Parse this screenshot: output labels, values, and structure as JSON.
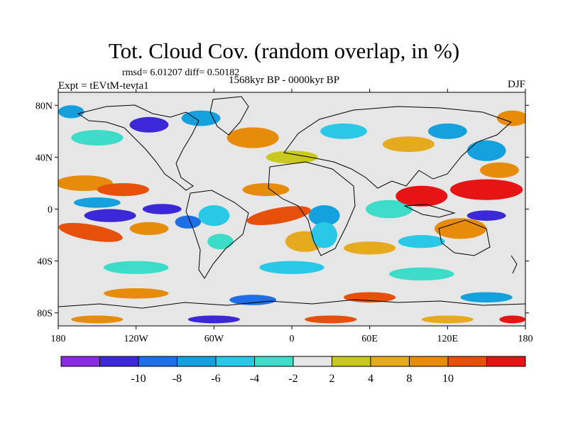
{
  "title": "Tot. Cloud Cov. (random overlap, in %)",
  "stats": "rmsd= 6.01207 diff= 0.50182",
  "experiment": "Expt = tEVtM-tevta1",
  "period": "1568kyr BP - 0000kyr BP",
  "season": "DJF",
  "map": {
    "lon_range": [
      -180,
      180
    ],
    "lat_range": [
      -90,
      90
    ],
    "x_ticks": [
      {
        "lon": -180,
        "label": "180"
      },
      {
        "lon": -120,
        "label": "120W"
      },
      {
        "lon": -60,
        "label": "60W"
      },
      {
        "lon": 0,
        "label": "0"
      },
      {
        "lon": 60,
        "label": "60E"
      },
      {
        "lon": 120,
        "label": "120E"
      },
      {
        "lon": 180,
        "label": "180"
      }
    ],
    "y_ticks": [
      {
        "lat": 80,
        "label": "80N"
      },
      {
        "lat": 40,
        "label": "40N"
      },
      {
        "lat": 0,
        "label": "0"
      },
      {
        "lat": -40,
        "label": "40S"
      },
      {
        "lat": -80,
        "label": "80S"
      }
    ]
  },
  "colorbar": {
    "colors": [
      "#8a2be2",
      "#3c28d6",
      "#1e6ee6",
      "#14a0dc",
      "#28c8e6",
      "#3cdcc8",
      "#e6e6e6",
      "#c8c81e",
      "#e6aa1e",
      "#e68c0a",
      "#e6500a",
      "#e61414"
    ],
    "labels": [
      {
        "after_box": 1,
        "text": "-10"
      },
      {
        "after_box": 2,
        "text": "-8"
      },
      {
        "after_box": 3,
        "text": "-6"
      },
      {
        "after_box": 4,
        "text": "-4"
      },
      {
        "after_box": 5,
        "text": "-2"
      },
      {
        "after_box": 6,
        "text": "2"
      },
      {
        "after_box": 7,
        "text": "4"
      },
      {
        "after_box": 8,
        "text": "8"
      },
      {
        "after_box": 9,
        "text": "10"
      }
    ]
  },
  "anomaly_regions": [
    {
      "lon": -160,
      "lat": 20,
      "rx": 22,
      "ry": 6,
      "cat": 9,
      "rot": 0
    },
    {
      "lon": -130,
      "lat": 15,
      "rx": 20,
      "ry": 5,
      "cat": 10,
      "rot": 0
    },
    {
      "lon": -155,
      "lat": -18,
      "rx": 25,
      "ry": 6,
      "cat": 10,
      "rot": 10
    },
    {
      "lon": -140,
      "lat": -5,
      "rx": 20,
      "ry": 5,
      "cat": 1,
      "rot": 0
    },
    {
      "lon": -150,
      "lat": 5,
      "rx": 18,
      "ry": 4,
      "cat": 3,
      "rot": 0
    },
    {
      "lon": -100,
      "lat": 0,
      "rx": 15,
      "ry": 4,
      "cat": 1,
      "rot": 0
    },
    {
      "lon": -110,
      "lat": -15,
      "rx": 15,
      "ry": 5,
      "cat": 9,
      "rot": 0
    },
    {
      "lon": -80,
      "lat": -10,
      "rx": 10,
      "ry": 5,
      "cat": 2,
      "rot": 0
    },
    {
      "lon": -60,
      "lat": -5,
      "rx": 12,
      "ry": 8,
      "cat": 4,
      "rot": 0
    },
    {
      "lon": -55,
      "lat": -25,
      "rx": 10,
      "ry": 6,
      "cat": 5,
      "rot": 0
    },
    {
      "lon": -10,
      "lat": -5,
      "rx": 25,
      "ry": 6,
      "cat": 10,
      "rot": -10
    },
    {
      "lon": -20,
      "lat": 15,
      "rx": 18,
      "ry": 5,
      "cat": 9,
      "rot": 0
    },
    {
      "lon": 10,
      "lat": -25,
      "rx": 15,
      "ry": 8,
      "cat": 8,
      "rot": 0
    },
    {
      "lon": 25,
      "lat": -5,
      "rx": 12,
      "ry": 8,
      "cat": 3,
      "rot": 0
    },
    {
      "lon": 25,
      "lat": -20,
      "rx": 10,
      "ry": 10,
      "cat": 4,
      "rot": 0
    },
    {
      "lon": 75,
      "lat": 0,
      "rx": 18,
      "ry": 7,
      "cat": 5,
      "rot": 0
    },
    {
      "lon": 100,
      "lat": 10,
      "rx": 20,
      "ry": 8,
      "cat": 11,
      "rot": 0
    },
    {
      "lon": 150,
      "lat": 15,
      "rx": 28,
      "ry": 8,
      "cat": 11,
      "rot": 0
    },
    {
      "lon": 160,
      "lat": 30,
      "rx": 15,
      "ry": 6,
      "cat": 9,
      "rot": 0
    },
    {
      "lon": 130,
      "lat": -15,
      "rx": 20,
      "ry": 8,
      "cat": 9,
      "rot": 0
    },
    {
      "lon": 150,
      "lat": -5,
      "rx": 15,
      "ry": 4,
      "cat": 1,
      "rot": 0
    },
    {
      "lon": 100,
      "lat": -25,
      "rx": 18,
      "ry": 5,
      "cat": 4,
      "rot": 0
    },
    {
      "lon": 60,
      "lat": -30,
      "rx": 20,
      "ry": 5,
      "cat": 8,
      "rot": 0
    },
    {
      "lon": -30,
      "lat": 55,
      "rx": 20,
      "ry": 8,
      "cat": 9,
      "rot": 0
    },
    {
      "lon": -110,
      "lat": 65,
      "rx": 15,
      "ry": 6,
      "cat": 1,
      "rot": 0
    },
    {
      "lon": -70,
      "lat": 70,
      "rx": 15,
      "ry": 6,
      "cat": 3,
      "rot": 0
    },
    {
      "lon": 40,
      "lat": 60,
      "rx": 18,
      "ry": 6,
      "cat": 4,
      "rot": 0
    },
    {
      "lon": 90,
      "lat": 50,
      "rx": 20,
      "ry": 6,
      "cat": 8,
      "rot": 0
    },
    {
      "lon": 120,
      "lat": 60,
      "rx": 15,
      "ry": 6,
      "cat": 3,
      "rot": 0
    },
    {
      "lon": 0,
      "lat": 40,
      "rx": 20,
      "ry": 5,
      "cat": 7,
      "rot": 0
    },
    {
      "lon": 150,
      "lat": 45,
      "rx": 15,
      "ry": 8,
      "cat": 3,
      "rot": 0
    },
    {
      "lon": -150,
      "lat": 55,
      "rx": 20,
      "ry": 6,
      "cat": 5,
      "rot": 0
    },
    {
      "lon": -120,
      "lat": -45,
      "rx": 25,
      "ry": 5,
      "cat": 5,
      "rot": 0
    },
    {
      "lon": 0,
      "lat": -45,
      "rx": 25,
      "ry": 5,
      "cat": 4,
      "rot": 0
    },
    {
      "lon": 100,
      "lat": -50,
      "rx": 25,
      "ry": 5,
      "cat": 5,
      "rot": 0
    },
    {
      "lon": -120,
      "lat": -65,
      "rx": 25,
      "ry": 4,
      "cat": 9,
      "rot": 0
    },
    {
      "lon": -30,
      "lat": -70,
      "rx": 18,
      "ry": 4,
      "cat": 2,
      "rot": 0
    },
    {
      "lon": 60,
      "lat": -68,
      "rx": 20,
      "ry": 4,
      "cat": 10,
      "rot": 0
    },
    {
      "lon": 150,
      "lat": -68,
      "rx": 20,
      "ry": 4,
      "cat": 3,
      "rot": 0
    },
    {
      "lon": -150,
      "lat": -85,
      "rx": 20,
      "ry": 3,
      "cat": 9,
      "rot": 0
    },
    {
      "lon": -60,
      "lat": -85,
      "rx": 20,
      "ry": 3,
      "cat": 1,
      "rot": 0
    },
    {
      "lon": 30,
      "lat": -85,
      "rx": 20,
      "ry": 3,
      "cat": 10,
      "rot": 0
    },
    {
      "lon": 120,
      "lat": -85,
      "rx": 20,
      "ry": 3,
      "cat": 8,
      "rot": 0
    },
    {
      "lon": 170,
      "lat": -85,
      "rx": 10,
      "ry": 3,
      "cat": 11,
      "rot": 0
    },
    {
      "lon": 170,
      "lat": 70,
      "rx": 12,
      "ry": 6,
      "cat": 9,
      "rot": 0
    },
    {
      "lon": -170,
      "lat": 75,
      "rx": 10,
      "ry": 5,
      "cat": 3,
      "rot": 0
    }
  ]
}
